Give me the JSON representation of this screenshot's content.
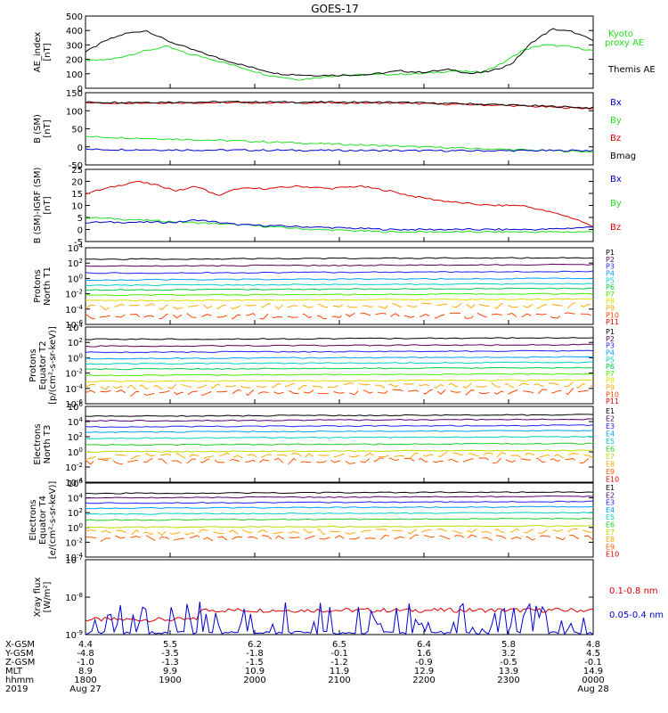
{
  "title": "GOES-17",
  "colors": {
    "black": "#000000",
    "green": "#22dd22",
    "red": "#dd0000",
    "blue": "#0000cc",
    "protons": [
      "#000000",
      "#5a005a",
      "#2222ff",
      "#00a0ff",
      "#00d0c0",
      "#00cc44",
      "#44ee00",
      "#dddd00",
      "#ffaa00",
      "#ff4400",
      "#dd0000"
    ],
    "electrons": [
      "#000000",
      "#550077",
      "#2222ff",
      "#00a0ff",
      "#00d0c0",
      "#22cc22",
      "#bbdd00",
      "#ffaa00",
      "#ff5500",
      "#dd0000"
    ]
  },
  "chart_data": [
    {
      "id": "ae",
      "type": "line",
      "ylabel": [
        "AE_index",
        "[nT]"
      ],
      "ylim": [
        0,
        500
      ],
      "yticks": [
        "0",
        "100",
        "200",
        "300",
        "400",
        "500"
      ],
      "series": [
        {
          "name": "Kyoto proxy AE",
          "label": [
            "Kyoto",
            "proxy AE"
          ],
          "color": "green",
          "x": [
            0,
            0.05,
            0.12,
            0.16,
            0.2,
            0.24,
            0.3,
            0.36,
            0.42,
            0.5,
            0.58,
            0.66,
            0.72,
            0.78,
            0.82,
            0.86,
            0.9,
            0.95,
            1.0
          ],
          "y": [
            190,
            200,
            260,
            290,
            240,
            210,
            150,
            90,
            60,
            90,
            95,
            100,
            120,
            110,
            170,
            260,
            300,
            290,
            260
          ]
        },
        {
          "name": "Themis AE",
          "label": [
            "Themis AE"
          ],
          "color": "black",
          "x": [
            0,
            0.04,
            0.08,
            0.12,
            0.16,
            0.2,
            0.26,
            0.32,
            0.38,
            0.44,
            0.5,
            0.56,
            0.62,
            0.66,
            0.72,
            0.76,
            0.8,
            0.84,
            0.88,
            0.92,
            0.96,
            1.0
          ],
          "y": [
            250,
            330,
            380,
            400,
            330,
            280,
            210,
            150,
            100,
            90,
            90,
            95,
            120,
            110,
            130,
            100,
            120,
            170,
            320,
            410,
            390,
            330
          ]
        }
      ]
    },
    {
      "id": "bsm",
      "type": "line",
      "ylabel": [
        "B (SM)",
        "[nT]"
      ],
      "ylim": [
        -60,
        150
      ],
      "yticks": [
        "-50",
        "0",
        "50",
        "100",
        "150"
      ],
      "legend": [
        "Bx",
        "By",
        "Bz",
        "Bmag"
      ],
      "series": [
        {
          "name": "Bz",
          "color": "red",
          "x": [
            0,
            0.3,
            0.6,
            0.8,
            1.0
          ],
          "y": [
            120,
            121,
            120,
            114,
            104
          ]
        },
        {
          "name": "Bmag",
          "color": "black",
          "x": [
            0,
            0.3,
            0.6,
            0.8,
            1.0
          ],
          "y": [
            122,
            123,
            122,
            116,
            106
          ]
        },
        {
          "name": "By",
          "color": "green",
          "x": [
            0,
            0.25,
            0.5,
            0.75,
            1.0
          ],
          "y": [
            22,
            12,
            0,
            -12,
            -22
          ]
        },
        {
          "name": "Bx",
          "color": "blue",
          "x": [
            0,
            0.25,
            0.5,
            0.75,
            1.0
          ],
          "y": [
            -15,
            -17,
            -18,
            -19,
            -18
          ]
        }
      ]
    },
    {
      "id": "bigrf",
      "type": "line",
      "ylabel": [
        "B (SM)-IGRF (SM)",
        "[nT]"
      ],
      "ylim": [
        -5,
        25
      ],
      "yticks": [
        "-5",
        "0",
        "5",
        "10",
        "15",
        "20",
        "25"
      ],
      "legend": [
        "Bx",
        "By",
        "Bz"
      ],
      "series": [
        {
          "name": "Bz",
          "color": "red",
          "x": [
            0,
            0.04,
            0.1,
            0.15,
            0.18,
            0.22,
            0.26,
            0.3,
            0.36,
            0.42,
            0.48,
            0.54,
            0.6,
            0.64,
            0.7,
            0.74,
            0.8,
            0.86,
            0.9,
            0.94,
            0.97,
            1.0
          ],
          "y": [
            15,
            17,
            20,
            18,
            16,
            18,
            14,
            17,
            17,
            18,
            17,
            18,
            16,
            14,
            12,
            11,
            10,
            10,
            8,
            6,
            4,
            1
          ]
        },
        {
          "name": "By",
          "color": "green",
          "x": [
            0,
            0.1,
            0.2,
            0.3,
            0.45,
            0.6,
            0.7,
            0.8,
            0.9,
            1.0
          ],
          "y": [
            5,
            4,
            3,
            2,
            0,
            -1,
            -1,
            -1,
            -1,
            -1
          ]
        },
        {
          "name": "Bx",
          "color": "blue",
          "x": [
            0,
            0.1,
            0.18,
            0.22,
            0.3,
            0.45,
            0.6,
            0.75,
            0.9,
            1.0
          ],
          "y": [
            3,
            3,
            3,
            4,
            2,
            1,
            0,
            0,
            0,
            1
          ]
        }
      ]
    },
    {
      "id": "pnorth",
      "type": "line",
      "log": true,
      "ylabel": [
        "Protons",
        "North T1"
      ],
      "ylim": [
        -6,
        4
      ],
      "yticks": [
        "10^-6",
        "10^-4",
        "10^-2",
        "10^0",
        "10^2",
        "10^4"
      ],
      "legend": [
        "P1",
        "P2",
        "P3",
        "P4",
        "P5",
        "P6",
        "P7",
        "P8",
        "P9",
        "P10",
        "P11"
      ],
      "levels": [
        2.5,
        1.6,
        0.7,
        -0.2,
        -0.9,
        -1.5,
        -2.2,
        -2.9,
        -3.7,
        -5,
        -6
      ]
    },
    {
      "id": "peq",
      "type": "line",
      "log": true,
      "ylabel": [
        "Protons",
        "Equator T2",
        "[p/(cm²-s-sr-keV)]"
      ],
      "ylim": [
        -6,
        4
      ],
      "yticks": [
        "10^-6",
        "10^-4",
        "10^-2",
        "10^0",
        "10^2",
        "10^4"
      ],
      "legend": [
        "P1",
        "P2",
        "P3",
        "P4",
        "P5",
        "P6",
        "P7",
        "P8",
        "P9",
        "P10",
        "P11"
      ],
      "levels": [
        2.4,
        1.5,
        0.7,
        -0.1,
        -0.8,
        -1.5,
        -2.3,
        -3.1,
        -3.8,
        -4.6,
        -6
      ]
    },
    {
      "id": "enorth",
      "type": "line",
      "log": true,
      "ylabel": [
        "Electrons",
        "North T3"
      ],
      "ylim": [
        -4,
        6
      ],
      "yticks": [
        "10^-4",
        "10^-2",
        "10^0",
        "10^2",
        "10^4",
        "10^6"
      ],
      "legend": [
        "E1",
        "E2",
        "E3",
        "E4",
        "E5",
        "E6",
        "E7",
        "E8",
        "E9",
        "E10"
      ],
      "levels": [
        4.7,
        4.1,
        3.3,
        2.6,
        1.8,
        0.9,
        0,
        -0.6,
        -1.3,
        -4
      ]
    },
    {
      "id": "eeq",
      "type": "line",
      "log": true,
      "ylabel": [
        "Electrons",
        "Equator T4",
        "[e/(cm²-s-sr-keV)]"
      ],
      "ylim": [
        -4,
        6
      ],
      "yticks": [
        "10^-4",
        "10^-2",
        "10^0",
        "10^2",
        "10^4",
        "10^6"
      ],
      "legend": [
        "E1",
        "E2",
        "E3",
        "E4",
        "E5",
        "E6",
        "E7",
        "E8",
        "E9",
        "E10"
      ],
      "levels": [
        4.6,
        4.0,
        3.3,
        2.6,
        1.8,
        1.0,
        0,
        -0.7,
        -1.5,
        -4
      ]
    },
    {
      "id": "xray",
      "type": "line",
      "log": true,
      "ylabel": [
        "Xray flux",
        "[W/m²]"
      ],
      "ylim": [
        -9,
        -7
      ],
      "yticks": [
        "10^-9",
        "10^-8",
        "10^-7"
      ],
      "series": [
        {
          "name": "0.1-0.8 nm",
          "color": "red",
          "level": -8.35
        },
        {
          "name": "0.05-0.4 nm",
          "color": "blue",
          "level": -9.0
        }
      ]
    }
  ],
  "xaxis": {
    "ticks_ut": [
      "1800",
      "1900",
      "2000",
      "2100",
      "2200",
      "2300",
      "0000"
    ],
    "rows": [
      {
        "label": "X-GSM",
        "values": [
          "4.4",
          "5.5",
          "6.2",
          "6.5",
          "6.4",
          "5.8",
          "4.8"
        ]
      },
      {
        "label": "Y-GSM",
        "values": [
          "-4.8",
          "-3.5",
          "-1.8",
          "-0.1",
          "1.6",
          "3.2",
          "4.5"
        ]
      },
      {
        "label": "Z-GSM",
        "values": [
          "-1.0",
          "-1.3",
          "-1.5",
          "-1.2",
          "-0.9",
          "-0.5",
          "-0.1"
        ]
      },
      {
        "label": "MLT",
        "values": [
          "8.9",
          "9.9",
          "10.9",
          "11.9",
          "12.9",
          "13.9",
          "14.9"
        ]
      },
      {
        "label": "hhmm",
        "values": [
          "1800",
          "1900",
          "2000",
          "2100",
          "2200",
          "2300",
          "0000"
        ]
      }
    ],
    "year": "2019",
    "date_start": "Aug 27",
    "date_end": "Aug 28"
  }
}
